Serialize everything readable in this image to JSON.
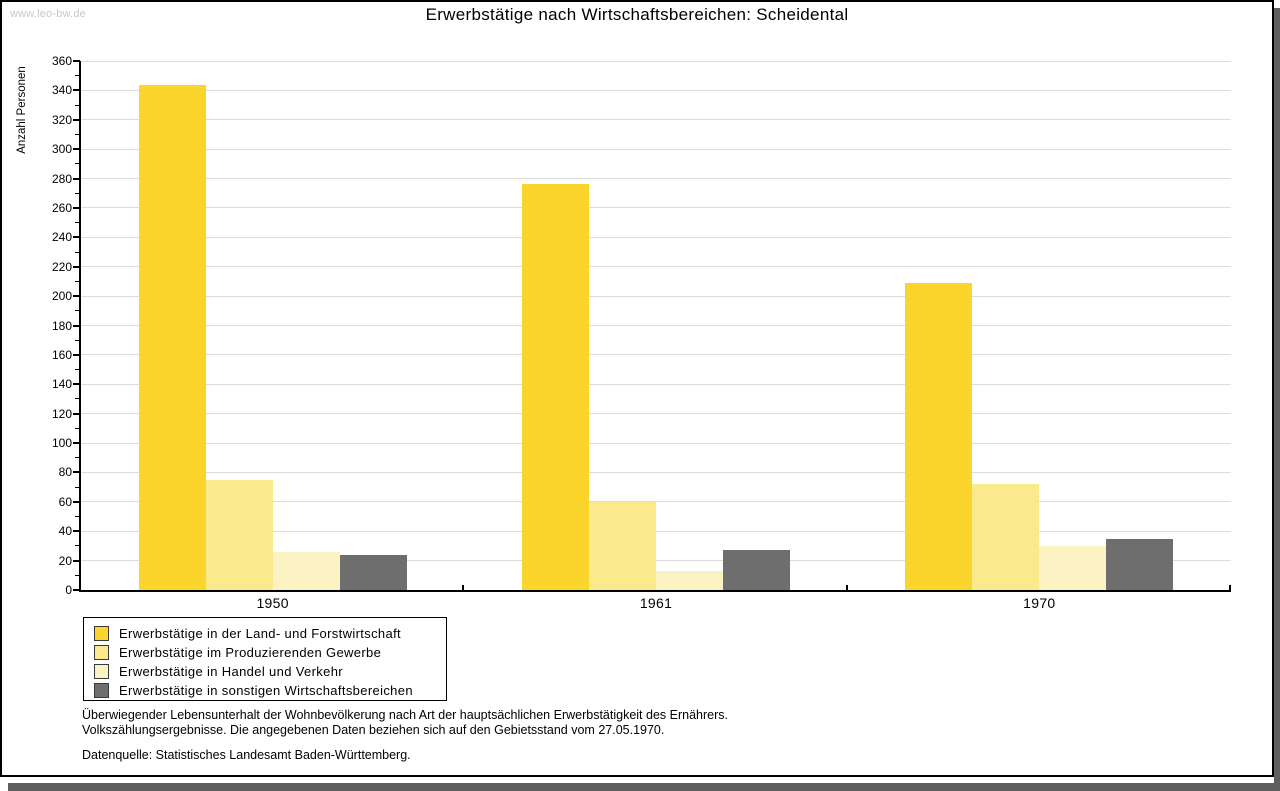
{
  "watermark": "www.leo-bw.de",
  "title": "Erwerbstätige nach Wirtschaftsbereichen: Scheidental",
  "chart_data": {
    "type": "bar",
    "title": "Erwerbstätige nach Wirtschaftsbereichen: Scheidental",
    "ylabel": "Anzahl Personen",
    "xlabel": "",
    "categories": [
      "1950",
      "1961",
      "1970"
    ],
    "series": [
      {
        "name": "Erwerbstätige in der Land- und Forstwirtschaft",
        "color": "#FBD42C",
        "values": [
          344,
          276,
          209
        ]
      },
      {
        "name": "Erwerbstätige im Produzierenden Gewerbe",
        "color": "#FBE98D",
        "values": [
          75,
          60,
          72
        ]
      },
      {
        "name": "Erwerbstätige in Handel und Verkehr",
        "color": "#FCF3C4",
        "values": [
          26,
          13,
          30
        ]
      },
      {
        "name": "Erwerbstätige in sonstigen Wirtschaftsbereichen",
        "color": "#6E6E6E",
        "values": [
          24,
          27,
          35
        ]
      }
    ],
    "ylim": [
      0,
      360
    ],
    "ytick_step": 20,
    "yminortick_step": 10,
    "grid": true,
    "gridline_color": "#dcdcdc",
    "legend_position": "bottom-left"
  },
  "footnotes": {
    "line1": "Überwiegender Lebensunterhalt der Wohnbevölkerung nach Art der hauptsächlichen Erwerbstätigkeit des Ernährers.",
    "line2": "Volkszählungsergebnisse. Die angegebenen Daten beziehen sich auf den Gebietsstand vom 27.05.1970.",
    "source": "Datenquelle: Statistisches Landesamt Baden-Württemberg."
  }
}
